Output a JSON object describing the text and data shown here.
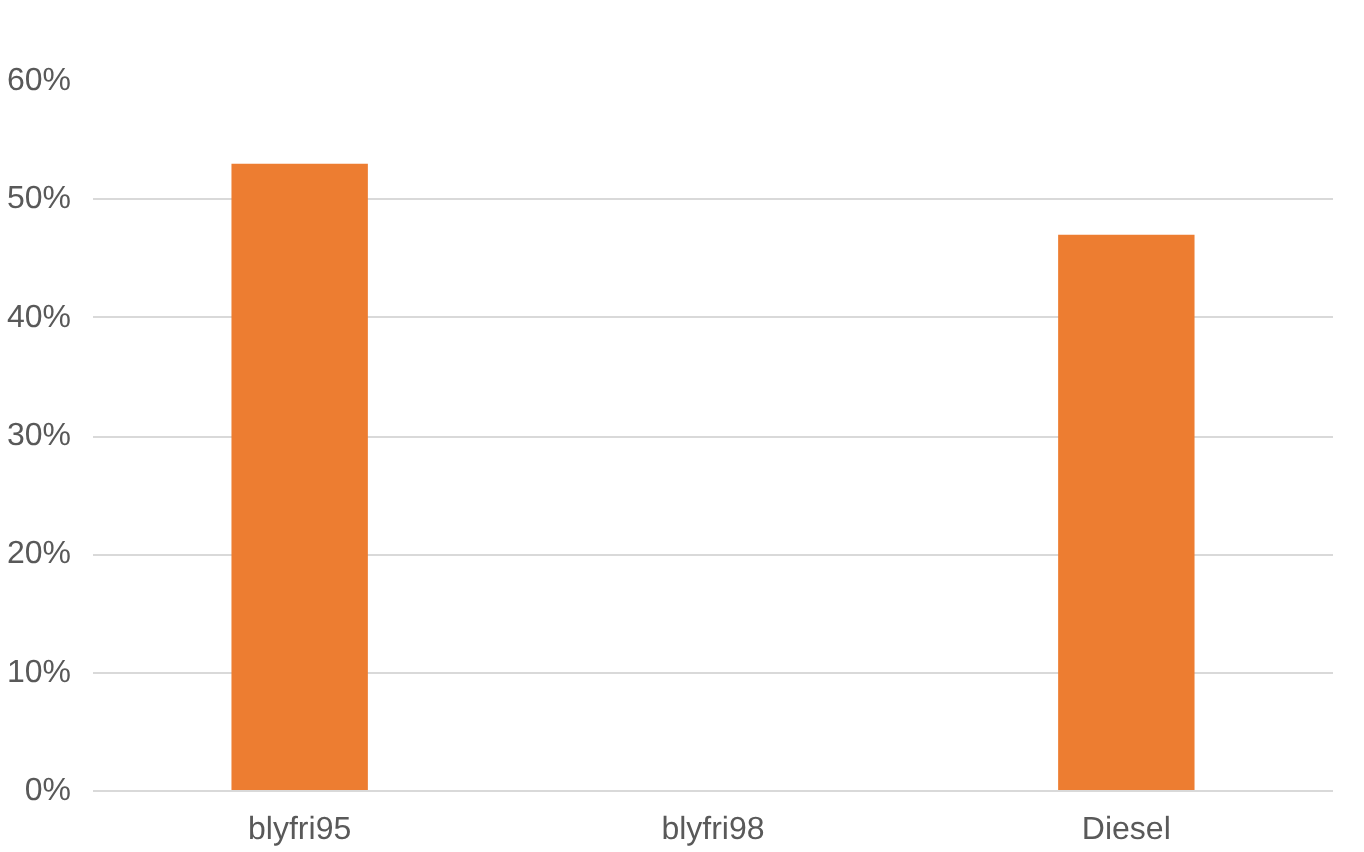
{
  "chart_data": {
    "type": "bar",
    "categories": [
      "blyfri95",
      "blyfri98",
      "Diesel"
    ],
    "values": [
      53,
      0,
      47
    ],
    "color": "#ed7d31",
    "ylim": [
      0,
      60
    ],
    "yticks": [
      {
        "value": 0,
        "label": "0%"
      },
      {
        "value": 10,
        "label": "10%"
      },
      {
        "value": 20,
        "label": "20%"
      },
      {
        "value": 30,
        "label": "30%"
      },
      {
        "value": 40,
        "label": "40%"
      },
      {
        "value": 50,
        "label": "50%"
      },
      {
        "value": 60,
        "label": "60%"
      }
    ],
    "grid": "y"
  }
}
